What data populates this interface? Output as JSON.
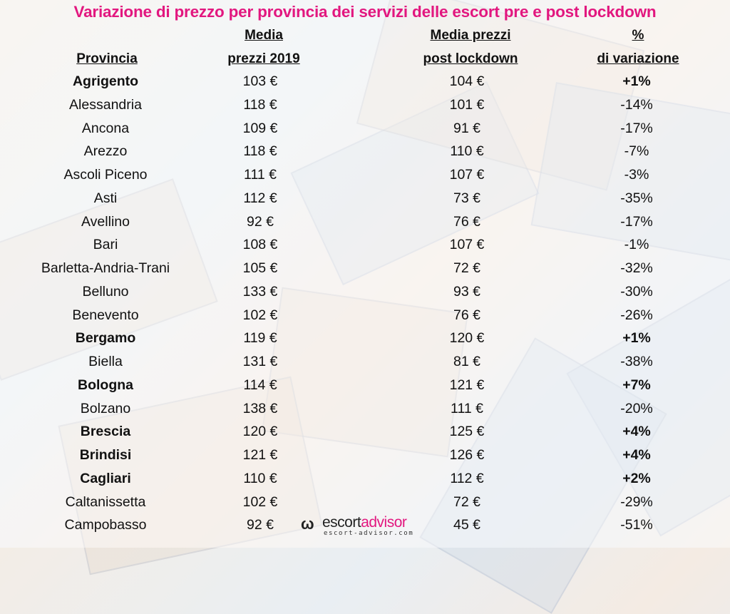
{
  "colors": {
    "title": "#e2177f",
    "text": "#111111",
    "positive_rows": "bold"
  },
  "chart_data": {
    "type": "table",
    "title": "Variazione di prezzo per provincia dei servizi delle escort pre e post lockdown",
    "columns": [
      "Provincia",
      "Media\nprezzi 2019",
      "Media prezzi\npost lockdown",
      "%\ndi variazione"
    ],
    "rows": [
      [
        "Agrigento",
        "103 €",
        "104 €",
        "+1%"
      ],
      [
        "Alessandria",
        "118 €",
        "101 €",
        "-14%"
      ],
      [
        "Ancona",
        "109 €",
        "91 €",
        "-17%"
      ],
      [
        "Arezzo",
        "118 €",
        "110 €",
        "-7%"
      ],
      [
        "Ascoli Piceno",
        "111 €",
        "107 €",
        "-3%"
      ],
      [
        "Asti",
        "112 €",
        "73 €",
        "-35%"
      ],
      [
        "Avellino",
        "92 €",
        "76 €",
        "-17%"
      ],
      [
        "Bari",
        "108 €",
        "107 €",
        "-1%"
      ],
      [
        "Barletta-Andria-Trani",
        "105 €",
        "72 €",
        "-32%"
      ],
      [
        "Belluno",
        "133 €",
        "93 €",
        "-30%"
      ],
      [
        "Benevento",
        "102 €",
        "76 €",
        "-26%"
      ],
      [
        "Bergamo",
        "119 €",
        "120 €",
        "+1%"
      ],
      [
        "Biella",
        "131 €",
        "81 €",
        "-38%"
      ],
      [
        "Bologna",
        "114 €",
        "121 €",
        "+7%"
      ],
      [
        "Bolzano",
        "138 €",
        "111 €",
        "-20%"
      ],
      [
        "Brescia",
        "120 €",
        "125 €",
        "+4%"
      ],
      [
        "Brindisi",
        "121 €",
        "126 €",
        "+4%"
      ],
      [
        "Cagliari",
        "110 €",
        "112 €",
        "+2%"
      ],
      [
        "Caltanissetta",
        "102 €",
        "72 €",
        "-29%"
      ],
      [
        "Campobasso",
        "92 €",
        "45 €",
        "-51%"
      ]
    ]
  },
  "logo": {
    "mark": "ω",
    "name_a": "escort",
    "name_b": "advisor",
    "url": "escort-advisor.com"
  }
}
